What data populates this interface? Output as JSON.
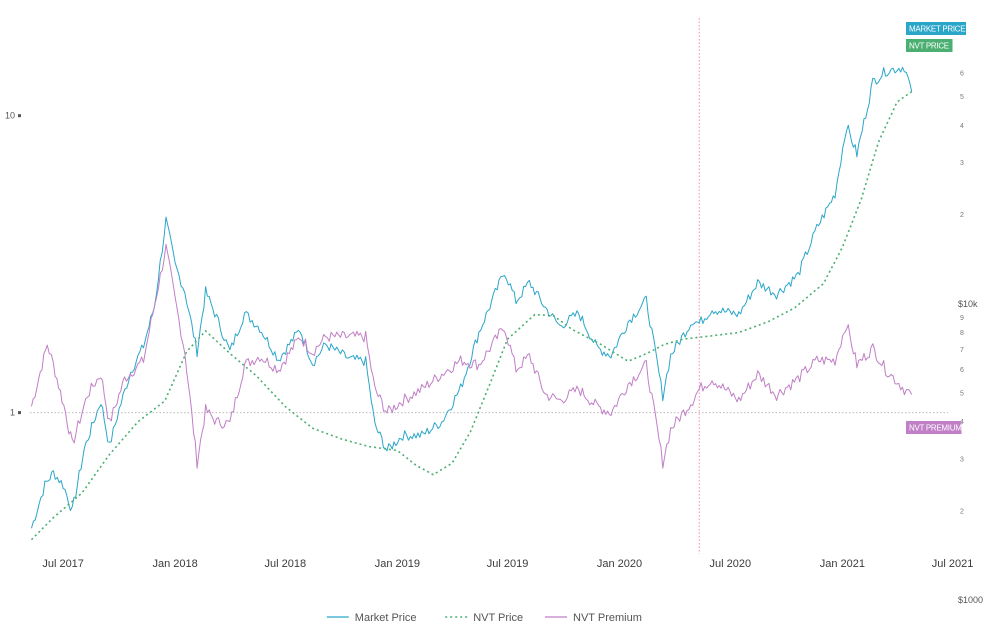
{
  "chart_data": {
    "type": "line",
    "x_axis": {
      "type": "date",
      "ticks": [
        {
          "date": "2017-07-01",
          "label": "Jul 2017"
        },
        {
          "date": "2018-01-01",
          "label": "Jan 2018"
        },
        {
          "date": "2018-07-01",
          "label": "Jul 2018"
        },
        {
          "date": "2019-01-01",
          "label": "Jan 2019"
        },
        {
          "date": "2019-07-01",
          "label": "Jul 2019"
        },
        {
          "date": "2020-01-01",
          "label": "Jan 2020"
        },
        {
          "date": "2020-07-01",
          "label": "Jul 2020"
        },
        {
          "date": "2021-01-01",
          "label": "Jan 2021"
        },
        {
          "date": "2021-07-01",
          "label": "Jul 2021"
        }
      ],
      "range": [
        "2017-05-01",
        "2021-07-10"
      ]
    },
    "y_axis_right": {
      "scale": "log",
      "unit": "USD",
      "range": [
        1500,
        95000
      ],
      "major_ticks": [
        {
          "value": 1000,
          "label": "$1000"
        },
        {
          "value": 10000,
          "label": "$10k"
        }
      ],
      "minor_ticks": [
        {
          "value": 2000,
          "label": "2"
        },
        {
          "value": 3000,
          "label": "3"
        },
        {
          "value": 4000,
          "label": "4"
        },
        {
          "value": 5000,
          "label": "5"
        },
        {
          "value": 6000,
          "label": "6"
        },
        {
          "value": 7000,
          "label": "7"
        },
        {
          "value": 8000,
          "label": "8"
        },
        {
          "value": 9000,
          "label": "9"
        },
        {
          "value": 20000,
          "label": "2"
        },
        {
          "value": 30000,
          "label": "3"
        },
        {
          "value": 40000,
          "label": "4"
        },
        {
          "value": 50000,
          "label": "5"
        },
        {
          "value": 60000,
          "label": "6"
        }
      ]
    },
    "y_axis_left": {
      "scale": "log",
      "range": [
        0.35,
        22
      ],
      "ticks": [
        {
          "value": 1,
          "label": "1"
        },
        {
          "value": 10,
          "label": "10"
        }
      ],
      "reference_line": 1
    },
    "vertical_marker": {
      "date": "2020-05-11",
      "color": "#f48fb1"
    },
    "series": [
      {
        "name": "Market Price",
        "axis": "right",
        "color": "#2aa6c9",
        "style": "solid",
        "tag": "MARKET PRICE",
        "points": [
          [
            "2017-05-10",
            1750
          ],
          [
            "2017-06-01",
            2450
          ],
          [
            "2017-06-15",
            2700
          ],
          [
            "2017-07-01",
            2450
          ],
          [
            "2017-07-16",
            2000
          ],
          [
            "2017-08-05",
            3250
          ],
          [
            "2017-09-01",
            4700
          ],
          [
            "2017-09-15",
            3300
          ],
          [
            "2017-10-01",
            4400
          ],
          [
            "2017-10-20",
            5900
          ],
          [
            "2017-11-10",
            7200
          ],
          [
            "2017-11-28",
            9800
          ],
          [
            "2017-12-17",
            19200
          ],
          [
            "2018-01-01",
            13500
          ],
          [
            "2018-01-17",
            11000
          ],
          [
            "2018-02-06",
            6900
          ],
          [
            "2018-02-20",
            11000
          ],
          [
            "2018-03-10",
            9000
          ],
          [
            "2018-04-01",
            6900
          ],
          [
            "2018-04-25",
            9300
          ],
          [
            "2018-05-20",
            8300
          ],
          [
            "2018-06-20",
            6500
          ],
          [
            "2018-07-25",
            8200
          ],
          [
            "2018-08-15",
            6300
          ],
          [
            "2018-09-05",
            7300
          ],
          [
            "2018-10-15",
            6500
          ],
          [
            "2018-11-10",
            6400
          ],
          [
            "2018-11-25",
            3900
          ],
          [
            "2018-12-15",
            3200
          ],
          [
            "2019-01-10",
            3600
          ],
          [
            "2019-02-10",
            3600
          ],
          [
            "2019-03-15",
            4000
          ],
          [
            "2019-04-15",
            5200
          ],
          [
            "2019-05-15",
            8000
          ],
          [
            "2019-06-26",
            12900
          ],
          [
            "2019-07-15",
            10200
          ],
          [
            "2019-08-06",
            11800
          ],
          [
            "2019-09-01",
            9700
          ],
          [
            "2019-09-25",
            8400
          ],
          [
            "2019-10-26",
            9300
          ],
          [
            "2019-11-25",
            7100
          ],
          [
            "2019-12-18",
            6700
          ],
          [
            "2020-01-15",
            8700
          ],
          [
            "2020-02-14",
            10300
          ],
          [
            "2020-03-12",
            4900
          ],
          [
            "2020-03-25",
            6700
          ],
          [
            "2020-04-30",
            8800
          ],
          [
            "2020-05-11",
            8600
          ],
          [
            "2020-06-01",
            9600
          ],
          [
            "2020-07-15",
            9200
          ],
          [
            "2020-08-15",
            11800
          ],
          [
            "2020-09-15",
            10800
          ],
          [
            "2020-10-20",
            12500
          ],
          [
            "2020-11-20",
            18000
          ],
          [
            "2020-12-20",
            23500
          ],
          [
            "2021-01-08",
            40000
          ],
          [
            "2021-01-25",
            32000
          ],
          [
            "2021-02-20",
            56000
          ],
          [
            "2021-03-13",
            61000
          ],
          [
            "2021-04-13",
            63000
          ],
          [
            "2021-04-25",
            52000
          ]
        ]
      },
      {
        "name": "NVT Price",
        "axis": "right",
        "color": "#4caf72",
        "style": "dotted",
        "tag": "NVT PRICE",
        "points": [
          [
            "2017-05-10",
            1600
          ],
          [
            "2017-06-15",
            1900
          ],
          [
            "2017-08-01",
            2300
          ],
          [
            "2017-09-15",
            3100
          ],
          [
            "2017-11-01",
            4000
          ],
          [
            "2017-12-15",
            4700
          ],
          [
            "2018-01-20",
            6900
          ],
          [
            "2018-02-20",
            8100
          ],
          [
            "2018-04-01",
            6800
          ],
          [
            "2018-05-15",
            5700
          ],
          [
            "2018-07-01",
            4500
          ],
          [
            "2018-08-15",
            3800
          ],
          [
            "2018-10-01",
            3500
          ],
          [
            "2018-11-15",
            3300
          ],
          [
            "2019-01-01",
            3200
          ],
          [
            "2019-02-01",
            2850
          ],
          [
            "2019-03-01",
            2650
          ],
          [
            "2019-04-01",
            2900
          ],
          [
            "2019-05-01",
            3700
          ],
          [
            "2019-06-01",
            5300
          ],
          [
            "2019-07-01",
            7600
          ],
          [
            "2019-08-15",
            9200
          ],
          [
            "2019-09-15",
            9100
          ],
          [
            "2019-10-15",
            8200
          ],
          [
            "2019-12-01",
            7300
          ],
          [
            "2020-01-15",
            6400
          ],
          [
            "2020-02-15",
            6800
          ],
          [
            "2020-03-15",
            7300
          ],
          [
            "2020-04-15",
            7600
          ],
          [
            "2020-06-01",
            7800
          ],
          [
            "2020-07-15",
            8000
          ],
          [
            "2020-09-01",
            8700
          ],
          [
            "2020-10-15",
            9700
          ],
          [
            "2020-12-01",
            11700
          ],
          [
            "2021-01-01",
            15500
          ],
          [
            "2021-02-01",
            22500
          ],
          [
            "2021-03-01",
            35000
          ],
          [
            "2021-04-01",
            48000
          ],
          [
            "2021-04-25",
            52000
          ]
        ]
      },
      {
        "name": "NVT Premium",
        "axis": "left",
        "color": "#c07fc6",
        "style": "solid",
        "tag": "NVT PREMIUM",
        "points": [
          [
            "2017-05-10",
            1.05
          ],
          [
            "2017-06-05",
            1.7
          ],
          [
            "2017-06-15",
            1.45
          ],
          [
            "2017-07-05",
            1.0
          ],
          [
            "2017-07-16",
            0.78
          ],
          [
            "2017-08-10",
            1.15
          ],
          [
            "2017-09-01",
            1.35
          ],
          [
            "2017-09-15",
            0.92
          ],
          [
            "2017-10-10",
            1.3
          ],
          [
            "2017-11-10",
            1.5
          ],
          [
            "2017-12-17",
            3.6
          ],
          [
            "2018-01-01",
            2.4
          ],
          [
            "2018-01-17",
            1.6
          ],
          [
            "2018-02-06",
            0.68
          ],
          [
            "2018-02-20",
            1.02
          ],
          [
            "2018-03-10",
            0.93
          ],
          [
            "2018-04-01",
            0.92
          ],
          [
            "2018-04-25",
            1.45
          ],
          [
            "2018-05-20",
            1.55
          ],
          [
            "2018-06-20",
            1.4
          ],
          [
            "2018-07-25",
            1.8
          ],
          [
            "2018-08-15",
            1.6
          ],
          [
            "2018-09-05",
            1.8
          ],
          [
            "2018-10-15",
            1.8
          ],
          [
            "2018-11-10",
            1.8
          ],
          [
            "2018-11-25",
            1.2
          ],
          [
            "2018-12-15",
            1.0
          ],
          [
            "2019-01-10",
            1.1
          ],
          [
            "2019-02-10",
            1.2
          ],
          [
            "2019-03-15",
            1.35
          ],
          [
            "2019-04-15",
            1.5
          ],
          [
            "2019-05-15",
            1.45
          ],
          [
            "2019-06-26",
            1.95
          ],
          [
            "2019-07-15",
            1.4
          ],
          [
            "2019-08-06",
            1.55
          ],
          [
            "2019-09-01",
            1.15
          ],
          [
            "2019-09-25",
            1.1
          ],
          [
            "2019-10-26",
            1.2
          ],
          [
            "2019-11-25",
            1.05
          ],
          [
            "2019-12-18",
            1.0
          ],
          [
            "2020-01-15",
            1.25
          ],
          [
            "2020-02-14",
            1.45
          ],
          [
            "2020-03-12",
            0.68
          ],
          [
            "2020-03-25",
            0.88
          ],
          [
            "2020-04-30",
            1.1
          ],
          [
            "2020-05-11",
            1.2
          ],
          [
            "2020-06-01",
            1.3
          ],
          [
            "2020-07-15",
            1.1
          ],
          [
            "2020-08-15",
            1.35
          ],
          [
            "2020-09-15",
            1.15
          ],
          [
            "2020-10-20",
            1.3
          ],
          [
            "2020-11-20",
            1.5
          ],
          [
            "2020-12-20",
            1.5
          ],
          [
            "2021-01-08",
            2.0
          ],
          [
            "2021-01-25",
            1.45
          ],
          [
            "2021-02-20",
            1.65
          ],
          [
            "2021-03-13",
            1.4
          ],
          [
            "2021-04-13",
            1.2
          ],
          [
            "2021-04-25",
            1.15
          ]
        ]
      }
    ],
    "legend": {
      "placement": "bottom-center"
    },
    "grid": false
  }
}
